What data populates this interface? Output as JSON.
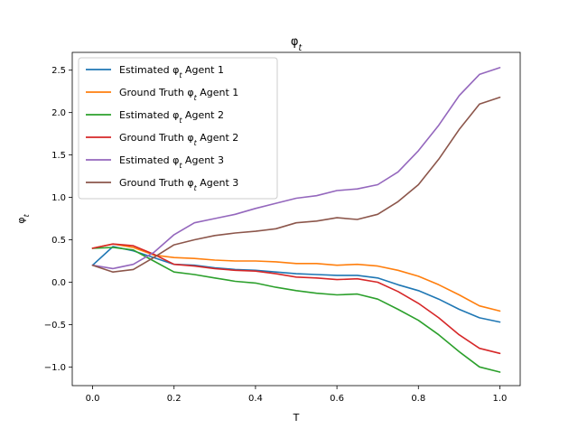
{
  "chart_data": {
    "type": "line",
    "title": "φ_t",
    "xlabel": "T",
    "ylabel": "φ_t",
    "xlim": [
      -0.05,
      1.05
    ],
    "ylim": [
      -1.22,
      2.71
    ],
    "xticks": [
      0.0,
      0.2,
      0.4,
      0.6,
      0.8,
      1.0
    ],
    "xtick_labels": [
      "0.0",
      "0.2",
      "0.4",
      "0.6",
      "0.8",
      "1.0"
    ],
    "yticks": [
      -1.0,
      -0.5,
      0.0,
      0.5,
      1.0,
      1.5,
      2.0,
      2.5
    ],
    "ytick_labels": [
      "−1.0",
      "−0.5",
      "0.0",
      "0.5",
      "1.0",
      "1.5",
      "2.0",
      "2.5"
    ],
    "grid": false,
    "legend_position": "top-left",
    "x": [
      0.0,
      0.05,
      0.1,
      0.15,
      0.2,
      0.25,
      0.3,
      0.35,
      0.4,
      0.45,
      0.5,
      0.55,
      0.6,
      0.65,
      0.7,
      0.75,
      0.8,
      0.85,
      0.9,
      0.95,
      1.0
    ],
    "series": [
      {
        "name": "Estimated φ_t Agent 1",
        "color": "#1f77b4",
        "values": [
          0.2,
          0.42,
          0.37,
          0.29,
          0.21,
          0.2,
          0.17,
          0.15,
          0.14,
          0.12,
          0.1,
          0.09,
          0.08,
          0.08,
          0.05,
          -0.03,
          -0.1,
          -0.2,
          -0.32,
          -0.42,
          -0.47
        ]
      },
      {
        "name": "Ground Truth φ_t Agent 1",
        "color": "#ff7f0e",
        "values": [
          0.4,
          0.45,
          0.41,
          0.32,
          0.29,
          0.28,
          0.26,
          0.25,
          0.25,
          0.24,
          0.22,
          0.22,
          0.2,
          0.21,
          0.19,
          0.14,
          0.07,
          -0.03,
          -0.15,
          -0.28,
          -0.34
        ]
      },
      {
        "name": "Estimated φ_t Agent 2",
        "color": "#2ca02c",
        "values": [
          0.4,
          0.41,
          0.38,
          0.25,
          0.12,
          0.09,
          0.05,
          0.01,
          -0.01,
          -0.06,
          -0.1,
          -0.13,
          -0.15,
          -0.14,
          -0.2,
          -0.32,
          -0.45,
          -0.62,
          -0.82,
          -1.0,
          -1.06
        ]
      },
      {
        "name": "Ground Truth φ_t Agent 2",
        "color": "#d62728",
        "values": [
          0.4,
          0.45,
          0.43,
          0.33,
          0.21,
          0.19,
          0.16,
          0.14,
          0.13,
          0.1,
          0.06,
          0.05,
          0.03,
          0.04,
          0.0,
          -0.11,
          -0.25,
          -0.42,
          -0.62,
          -0.78,
          -0.84
        ]
      },
      {
        "name": "Estimated φ_t Agent 3",
        "color": "#9467bd",
        "values": [
          0.2,
          0.16,
          0.21,
          0.35,
          0.56,
          0.7,
          0.75,
          0.8,
          0.87,
          0.93,
          0.99,
          1.02,
          1.08,
          1.1,
          1.15,
          1.3,
          1.55,
          1.85,
          2.2,
          2.45,
          2.53
        ]
      },
      {
        "name": "Ground Truth φ_t Agent 3",
        "color": "#8c564b",
        "values": [
          0.2,
          0.12,
          0.15,
          0.29,
          0.44,
          0.5,
          0.55,
          0.58,
          0.6,
          0.63,
          0.7,
          0.72,
          0.76,
          0.74,
          0.8,
          0.95,
          1.15,
          1.45,
          1.8,
          2.1,
          2.18
        ]
      }
    ]
  }
}
